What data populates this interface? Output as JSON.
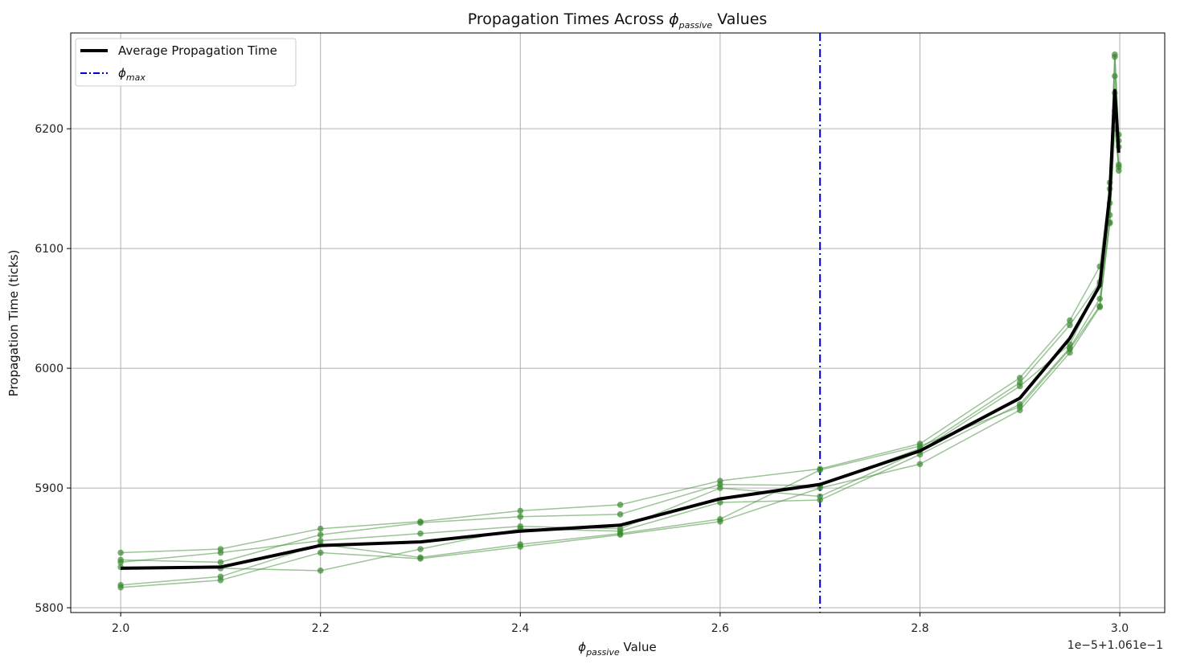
{
  "chart_data": {
    "type": "line",
    "title": {
      "prefix": "Propagation Times Across ",
      "symbol": "ϕ",
      "subscript": "passive",
      "suffix": " Values"
    },
    "xlabel": {
      "symbol": "ϕ",
      "subscript": "passive",
      "suffix": " Value"
    },
    "ylabel": "Propagation Time (ticks)",
    "x_offset_text": "1e−5+1.061e−1",
    "xlim": [
      1.95,
      3.045
    ],
    "ylim": [
      5796,
      6280
    ],
    "x_ticks": [
      2.0,
      2.2,
      2.4,
      2.6,
      2.8,
      3.0
    ],
    "x_tick_labels": [
      "2.0",
      "2.2",
      "2.4",
      "2.6",
      "2.8",
      "3.0"
    ],
    "y_ticks": [
      5800,
      5900,
      6000,
      6100,
      6200
    ],
    "y_tick_labels": [
      "5800",
      "5900",
      "6000",
      "6100",
      "6200"
    ],
    "grid": true,
    "legend_position": "top-left",
    "legend": {
      "average_label": "Average Propagation Time",
      "vline_symbol": "ϕ",
      "vline_subscript": "max"
    },
    "colors": {
      "runs": "#3a8a30",
      "average": "#000000",
      "vline": "#0000cc",
      "grid": "#b0b0b0"
    },
    "x": [
      2.0,
      2.1,
      2.2,
      2.3,
      2.4,
      2.5,
      2.6,
      2.7,
      2.8,
      2.9,
      2.95,
      2.98,
      2.99,
      2.995,
      2.999
    ],
    "vline_x": 2.7,
    "series": [
      {
        "values": [
          5846,
          5849,
          5866,
          5872,
          5881,
          5886,
          5906,
          5916,
          5937,
          5992,
          6040,
          6085,
          6150,
          6262,
          6195
        ]
      },
      {
        "values": [
          5840,
          5838,
          5861,
          5871,
          5876,
          5878,
          5903,
          5902,
          5933,
          5988,
          6036,
          6072,
          6155,
          6260,
          6190
        ]
      },
      {
        "values": [
          5838,
          5846,
          5856,
          5862,
          5868,
          5866,
          5900,
          5893,
          5931,
          5985,
          6020,
          6070,
          6138,
          6244,
          6185
        ]
      },
      {
        "values": [
          5834,
          5833,
          5831,
          5849,
          5866,
          5864,
          5888,
          5890,
          5928,
          5970,
          6017,
          6058,
          6128,
          6230,
          6170
        ]
      },
      {
        "values": [
          5819,
          5826,
          5853,
          5842,
          5853,
          5862,
          5874,
          5915,
          5935,
          5968,
          6016,
          6052,
          6122,
          6215,
          6165
        ]
      },
      {
        "values": [
          5817,
          5823,
          5846,
          5841,
          5851,
          5861,
          5872,
          5900,
          5920,
          5965,
          6013,
          6051,
          6121,
          6200,
          6168
        ]
      }
    ],
    "average": [
      5833,
      5834,
      5852,
      5855,
      5864,
      5869,
      5891,
      5903,
      5931,
      5975,
      6025,
      6069,
      6145,
      6232,
      6180
    ]
  }
}
